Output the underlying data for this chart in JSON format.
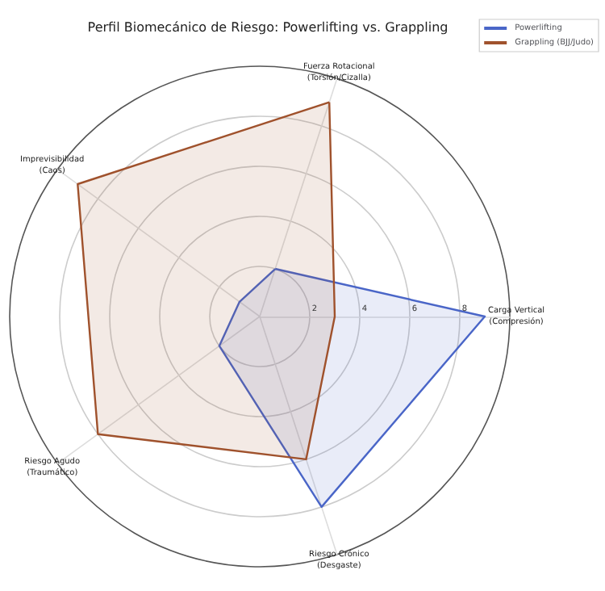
{
  "chart_data": {
    "type": "radar",
    "title": "Perfil Biomecánico de Riesgo: Powerlifting vs. Grappling",
    "categories": [
      "Fuerza Rotacional\n(Torsión/Cizalla)",
      "Carga Vertical\n(Compresión)",
      "Riesgo Crónico\n(Desgaste)",
      "Riesgo Agudo\n(Traumático)",
      "Imprevisibilidad\n(Caos)"
    ],
    "series": [
      {
        "name": "Powerlifting",
        "color": "#4a66c8",
        "values": [
          2,
          9,
          8,
          2,
          1
        ]
      },
      {
        "name": "Grappling (BJJ/Judo)",
        "color": "#a0522d",
        "values": [
          9,
          3,
          6,
          8,
          9
        ]
      }
    ],
    "ylim": [
      0,
      10
    ],
    "yticks": [
      2,
      4,
      6,
      8
    ],
    "grid": true,
    "legend": "top right"
  }
}
